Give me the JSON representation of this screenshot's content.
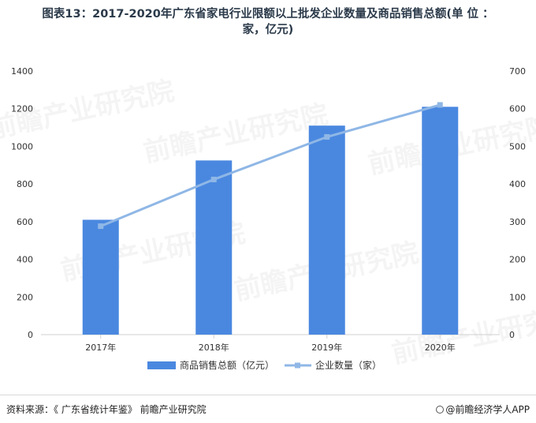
{
  "title_line1": "图表13：2017-2020年广东省家电行业限额以上批发企业数量及商品销售总额(单 位 ：",
  "title_line2": "家，亿元)",
  "watermark_text": "前瞻产业研究院",
  "footer": {
    "source": "资料来源：《 广东省统计年鉴》 前瞻产业研究院",
    "brand": "@前瞻经济学人APP"
  },
  "colors": {
    "bar": "#4a88e0",
    "line": "#8fb7e6",
    "axis": "#d0d0d0",
    "text": "#333333"
  },
  "chart_data": {
    "type": "bar",
    "title": "2017-2020年广东省家电行业限额以上批发企业数量及商品销售总额",
    "categories": [
      "2017年",
      "2018年",
      "2019年",
      "2020年"
    ],
    "series": [
      {
        "name": "商品销售总额（亿元）",
        "type": "bar",
        "axis": "left",
        "values": [
          610,
          925,
          1110,
          1210
        ]
      },
      {
        "name": "企业数量（家）",
        "type": "line",
        "axis": "right",
        "values": [
          288,
          412,
          525,
          610
        ]
      }
    ],
    "y_left": {
      "min": 0,
      "max": 1400,
      "ticks": [
        0,
        200,
        400,
        600,
        800,
        1000,
        1200,
        1400
      ]
    },
    "y_right": {
      "min": 0,
      "max": 700,
      "ticks": [
        0,
        100,
        200,
        300,
        400,
        500,
        600,
        700
      ]
    },
    "legend_position": "bottom",
    "grid": false
  }
}
